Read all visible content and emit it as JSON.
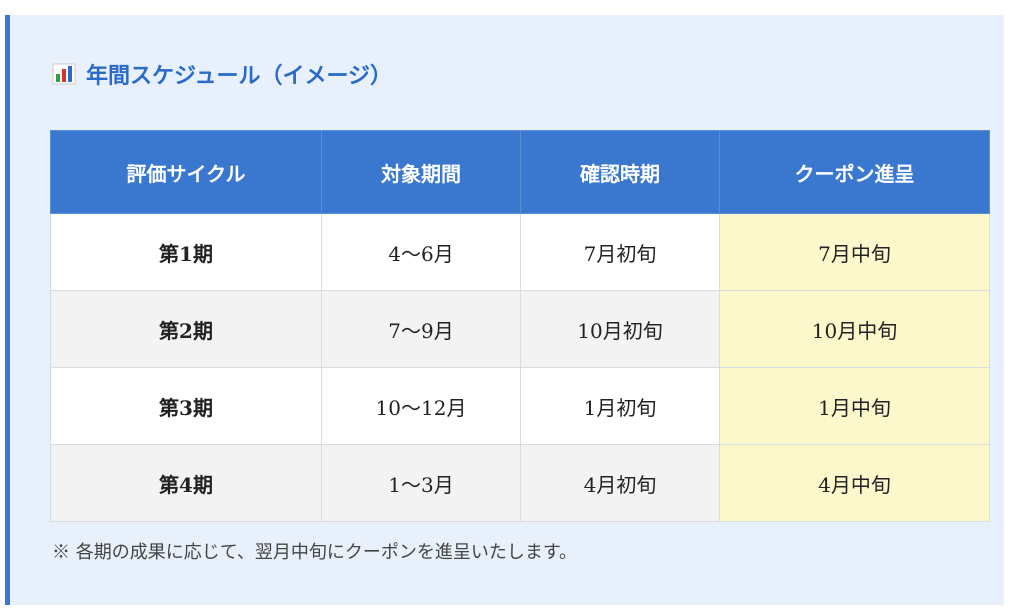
{
  "header": {
    "title": "年間スケジュール（イメージ）"
  },
  "table": {
    "columns": [
      "評価サイクル",
      "対象期間",
      "確認時期",
      "クーポン進呈"
    ],
    "rows": [
      [
        "第1期",
        "4〜6月",
        "7月初旬",
        "7月中旬"
      ],
      [
        "第2期",
        "7〜9月",
        "10月初旬",
        "10月中旬"
      ],
      [
        "第3期",
        "10〜12月",
        "1月初旬",
        "1月中旬"
      ],
      [
        "第4期",
        "1〜3月",
        "4月初旬",
        "4月中旬"
      ]
    ]
  },
  "note": "※ 各期の成果に応じて、翌月中旬にクーポンを進呈いたします。"
}
